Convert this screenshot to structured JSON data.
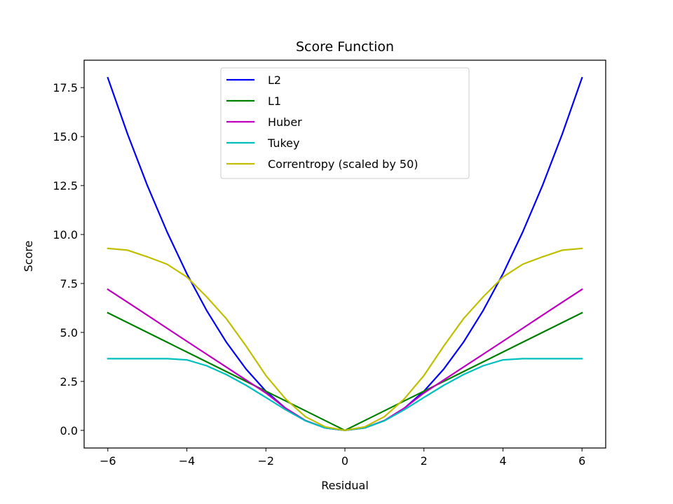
{
  "chart_data": {
    "type": "line",
    "title": "Score Function",
    "xlabel": "Residual",
    "ylabel": "Score",
    "xlim": [
      -6.6,
      6.6
    ],
    "ylim": [
      -0.9,
      18.9
    ],
    "xticks": [
      -6,
      -4,
      -2,
      0,
      2,
      4,
      6
    ],
    "xtick_labels": [
      "−6",
      "−4",
      "−2",
      "0",
      "2",
      "4",
      "6"
    ],
    "yticks": [
      0,
      2.5,
      5,
      7.5,
      10,
      12.5,
      15,
      17.5
    ],
    "ytick_labels": [
      "0.0",
      "2.5",
      "5.0",
      "7.5",
      "10.0",
      "12.5",
      "15.0",
      "17.5"
    ],
    "grid": false,
    "legend_position": "upper center",
    "x": [
      -6,
      -5.5,
      -5,
      -4.5,
      -4,
      -3.5,
      -3,
      -2.5,
      -2,
      -1.5,
      -1,
      -0.5,
      0,
      0.5,
      1,
      1.5,
      2,
      2.5,
      3,
      3.5,
      4,
      4.5,
      5,
      5.5,
      6
    ],
    "series": [
      {
        "name": "L2",
        "color": "#0000ff",
        "values": [
          18,
          15.125,
          12.5,
          10.125,
          8,
          6.125,
          4.5,
          3.125,
          2,
          1.125,
          0.5,
          0.125,
          0,
          0.125,
          0.5,
          1.125,
          2,
          3.125,
          4.5,
          6.125,
          8,
          10.125,
          12.5,
          15.125,
          18
        ]
      },
      {
        "name": "L1",
        "color": "#008000",
        "values": [
          6,
          5.5,
          5,
          4.5,
          4,
          3.5,
          3,
          2.5,
          2,
          1.5,
          1,
          0.5,
          0,
          0.5,
          1,
          1.5,
          2,
          2.5,
          3,
          3.5,
          4,
          4.5,
          5,
          5.5,
          6
        ]
      },
      {
        "name": "Huber",
        "color": "#bf00bf",
        "values": [
          7.2,
          6.54,
          5.88,
          5.21,
          4.55,
          3.89,
          3.23,
          2.57,
          1.91,
          1.13,
          0.5,
          0.125,
          0,
          0.125,
          0.5,
          1.13,
          1.91,
          2.57,
          3.23,
          3.89,
          4.55,
          5.21,
          5.88,
          6.54,
          7.2
        ]
      },
      {
        "name": "Tukey",
        "color": "#00bfbf",
        "values": [
          3.66,
          3.66,
          3.66,
          3.66,
          3.6,
          3.3,
          2.85,
          2.3,
          1.68,
          1.05,
          0.49,
          0.125,
          0,
          0.125,
          0.49,
          1.05,
          1.68,
          2.3,
          2.85,
          3.3,
          3.6,
          3.66,
          3.66,
          3.66,
          3.66
        ]
      },
      {
        "name": "Correntropy (scaled by 50)",
        "color": "#bfbf00",
        "values": [
          9.29,
          9.2,
          8.86,
          8.48,
          7.83,
          6.82,
          5.7,
          4.3,
          2.8,
          1.6,
          0.7,
          0.18,
          0,
          0.18,
          0.7,
          1.6,
          2.8,
          4.3,
          5.7,
          6.82,
          7.83,
          8.48,
          8.86,
          9.2,
          9.29
        ]
      }
    ]
  }
}
